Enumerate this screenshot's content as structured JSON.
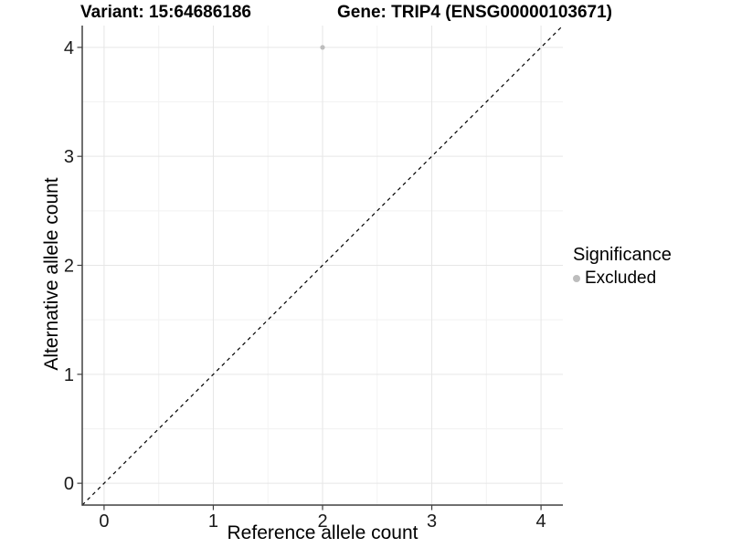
{
  "chart_data": {
    "type": "scatter",
    "titles": {
      "left": "Variant: 15:64686186",
      "right": "Gene: TRIP4 (ENSG00000103671)"
    },
    "xlabel": "Reference allele count",
    "ylabel": "Alternative allele count",
    "xlim": [
      -0.2,
      4.2
    ],
    "ylim": [
      -0.2,
      4.2
    ],
    "x_ticks": [
      0,
      1,
      2,
      3,
      4
    ],
    "y_ticks": [
      0,
      1,
      2,
      3,
      4
    ],
    "grid": {
      "major": true,
      "minor": true
    },
    "legend": {
      "title": "Significance",
      "position": "right",
      "items": [
        {
          "label": "Excluded",
          "color": "#bdbdbd"
        }
      ]
    },
    "series": [
      {
        "name": "Excluded",
        "color": "#bdbdbd",
        "point_radius": 2.6,
        "points": [
          {
            "x": 2,
            "y": 4
          }
        ]
      }
    ],
    "reference_line": {
      "slope": 1,
      "intercept": 0,
      "style": "dashed",
      "color": "#000000"
    }
  },
  "colors": {
    "background": "#ffffff",
    "grid_major": "#e6e6e6",
    "grid_minor": "#f2f2f2",
    "axis_line": "#404040",
    "tick_text": "#1a1a1a",
    "point": "#bdbdbd"
  }
}
